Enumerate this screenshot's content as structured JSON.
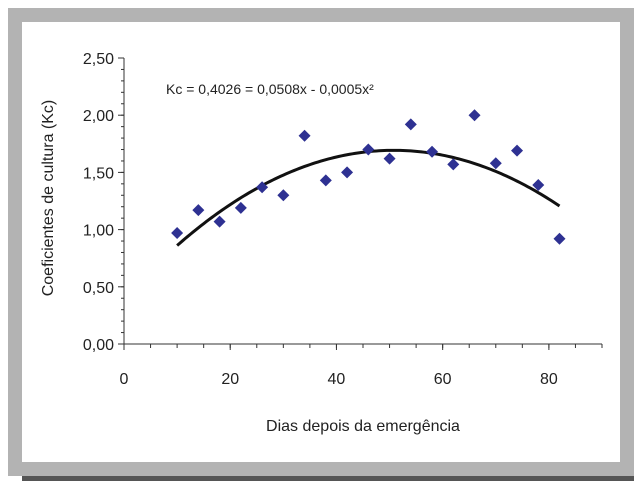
{
  "chart_data": {
    "type": "scatter",
    "title": "",
    "xlabel": "Dias depois da emergência",
    "ylabel": "Coeficientes de cultura (Kc)",
    "xlim": [
      0,
      90
    ],
    "ylim": [
      0,
      2.5
    ],
    "x_ticks": [
      "0",
      "20",
      "40",
      "60",
      "80"
    ],
    "x_tick_values": [
      0,
      20,
      40,
      60,
      80
    ],
    "y_ticks": [
      "0,00",
      "0,50",
      "1,00",
      "1,50",
      "2,00",
      "2,50"
    ],
    "y_tick_values": [
      0,
      0.5,
      1.0,
      1.5,
      2.0,
      2.5
    ],
    "series": [
      {
        "marker": "diamond",
        "color": "#2e3192",
        "points": [
          {
            "x": 10,
            "y": 0.97
          },
          {
            "x": 14,
            "y": 1.17
          },
          {
            "x": 18,
            "y": 1.07
          },
          {
            "x": 22,
            "y": 1.19
          },
          {
            "x": 26,
            "y": 1.37
          },
          {
            "x": 30,
            "y": 1.3
          },
          {
            "x": 34,
            "y": 1.82
          },
          {
            "x": 38,
            "y": 1.43
          },
          {
            "x": 42,
            "y": 1.5
          },
          {
            "x": 46,
            "y": 1.7
          },
          {
            "x": 50,
            "y": 1.62
          },
          {
            "x": 54,
            "y": 1.92
          },
          {
            "x": 58,
            "y": 1.68
          },
          {
            "x": 62,
            "y": 1.57
          },
          {
            "x": 66,
            "y": 2.0
          },
          {
            "x": 70,
            "y": 1.58
          },
          {
            "x": 74,
            "y": 1.69
          },
          {
            "x": 78,
            "y": 1.39
          },
          {
            "x": 82,
            "y": 0.92
          }
        ]
      }
    ],
    "trendline": {
      "type": "polynomial",
      "a": 0.4026,
      "b": 0.0508,
      "c": -0.0005,
      "x_range": [
        10,
        82
      ],
      "color": "#111111",
      "equation_label": "Kc = 0,4026 = 0,0508x - 0,0005x²"
    },
    "grid": false,
    "legend": "none"
  }
}
